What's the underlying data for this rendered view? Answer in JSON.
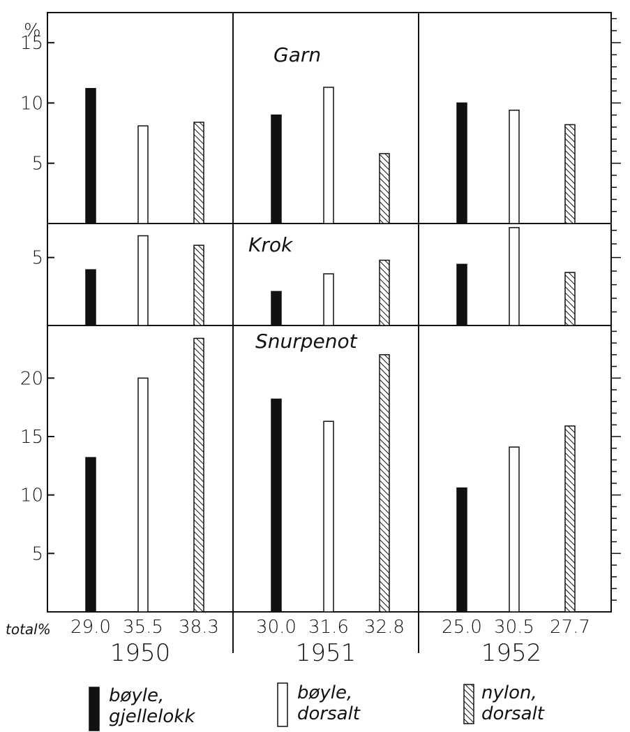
{
  "chart_data": {
    "type": "bar",
    "y_unit_label": "%",
    "groups": [
      "1950",
      "1951",
      "1952"
    ],
    "legend": [
      {
        "key": "gjellelokk",
        "line1": "bøyle,",
        "line2": "gjellelokk",
        "fill": "#111111",
        "pattern": "solid"
      },
      {
        "key": "dorsalt",
        "line1": "bøyle,",
        "line2": "dorsalt",
        "fill": "#ffffff",
        "pattern": "open"
      },
      {
        "key": "nylon",
        "line1": "nylon,",
        "line2": "dorsalt",
        "fill": "#ffffff",
        "pattern": "hatched"
      }
    ],
    "panels": [
      {
        "title": "Garn",
        "ylim": [
          0,
          17.5
        ],
        "yticks": [
          5,
          10,
          15
        ],
        "values": [
          [
            11.2,
            8.1,
            8.4
          ],
          [
            9.0,
            11.3,
            5.8
          ],
          [
            10.0,
            9.4,
            8.2
          ]
        ]
      },
      {
        "title": "Krok",
        "ylim": [
          0,
          7.5
        ],
        "yticks": [
          5
        ],
        "values": [
          [
            4.1,
            6.6,
            5.9
          ],
          [
            2.5,
            3.8,
            4.8
          ],
          [
            4.5,
            7.2,
            3.9
          ]
        ]
      },
      {
        "title": "Snurpenot",
        "ylim": [
          0,
          24.5
        ],
        "yticks": [
          5,
          10,
          15,
          20
        ],
        "values": [
          [
            13.2,
            20.0,
            23.4
          ],
          [
            18.2,
            16.3,
            22.0
          ],
          [
            10.6,
            14.1,
            15.9
          ]
        ]
      }
    ],
    "totals_label": "total%",
    "totals": [
      [
        "29.0",
        "35.5",
        "38.3"
      ],
      [
        "30.0",
        "31.6",
        "32.8"
      ],
      [
        "25.0",
        "30.5",
        "27.7"
      ]
    ],
    "grid": false
  }
}
